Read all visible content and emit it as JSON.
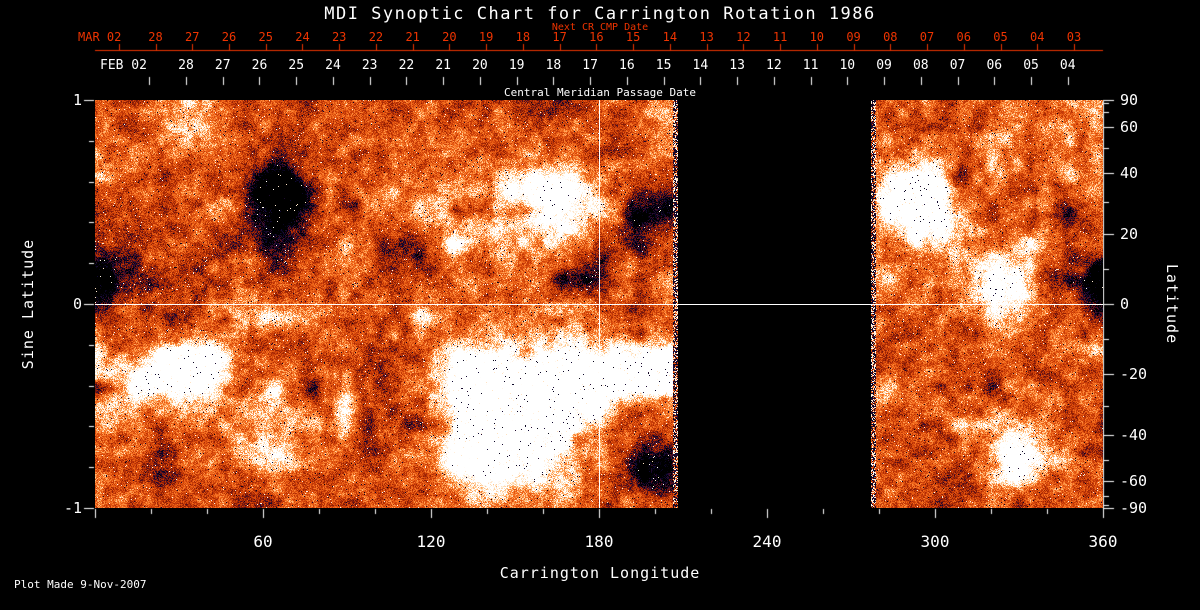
{
  "colors": {
    "background": "#000000",
    "foreground": "#ffffff",
    "accent_red": "#ee3400"
  },
  "footer": "Plot Made  9-Nov-2007",
  "chart_data": {
    "type": "heatmap",
    "title": "MDI Synoptic Chart for Carrington Rotation 1986",
    "xlabel": "Carrington Longitude",
    "ylabel_left": "Sine Latitude",
    "ylabel_right": "Latitude",
    "xlim": [
      0,
      360
    ],
    "sine_latitude_range": [
      -1,
      1
    ],
    "x_ticks": [
      60,
      120,
      180,
      240,
      300,
      360
    ],
    "sine_latitude_ticks": [
      1,
      0,
      -1
    ],
    "latitude_ticks": [
      90,
      60,
      40,
      20,
      0,
      -20,
      -40,
      -60,
      -90
    ],
    "colormap": "solar magnetogram: black/dark-blue negative field, orange-red quiet sun, white positive field",
    "data_gap_longitude_range": [
      208,
      277
    ],
    "reference_lines": {
      "longitude": 180,
      "sine_latitude": 0
    },
    "next_cr_axis": {
      "label": "Next CR CMP Date",
      "month_label": "MAR 02",
      "day_ticks": [
        "28",
        "27",
        "26",
        "25",
        "24",
        "23",
        "22",
        "21",
        "20",
        "19",
        "18",
        "17",
        "16",
        "15",
        "14",
        "13",
        "12",
        "11",
        "10",
        "09",
        "08",
        "07",
        "06",
        "05",
        "04",
        "03"
      ],
      "color": "#ee3400"
    },
    "cmp_axis": {
      "label": "Central Meridian Passage Date",
      "month_label": "FEB 02",
      "day_ticks": [
        "28",
        "27",
        "26",
        "25",
        "24",
        "23",
        "22",
        "21",
        "20",
        "19",
        "18",
        "17",
        "16",
        "15",
        "14",
        "13",
        "12",
        "11",
        "10",
        "09",
        "08",
        "07",
        "06",
        "05",
        "04"
      ],
      "color": "#ffffff"
    }
  }
}
